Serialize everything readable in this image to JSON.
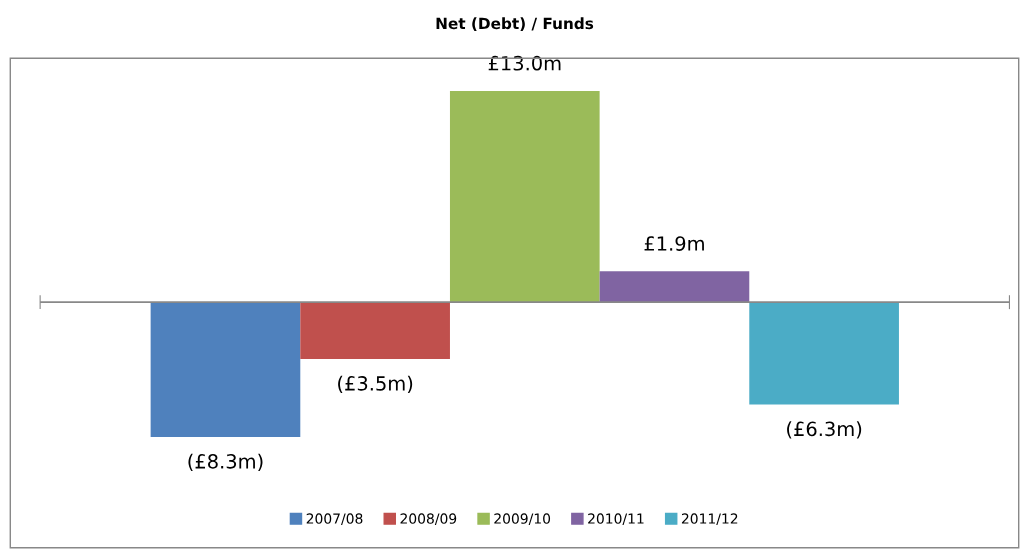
{
  "chart_data": {
    "type": "bar",
    "title": "Net (Debt) / Funds",
    "categories": [
      null
    ],
    "tick_labels": false,
    "legend": "bottom",
    "grid": false,
    "series": [
      {
        "name": "2007/08",
        "color": "#4f81bd",
        "values": [
          -8.3
        ],
        "value_labels": [
          "(£8.3m)"
        ]
      },
      {
        "name": "2008/09",
        "color": "#c0504d",
        "values": [
          -3.5
        ],
        "value_labels": [
          "(£3.5m)"
        ]
      },
      {
        "name": "2009/10",
        "color": "#9bbb59",
        "values": [
          13.0
        ],
        "value_labels": [
          "£13.0m"
        ]
      },
      {
        "name": "2010/11",
        "color": "#8064a2",
        "values": [
          1.9
        ],
        "value_labels": [
          "£1.9m"
        ]
      },
      {
        "name": "2011/12",
        "color": "#4bacc6",
        "values": [
          -6.3
        ],
        "value_labels": [
          "(£6.3m)"
        ]
      }
    ]
  }
}
